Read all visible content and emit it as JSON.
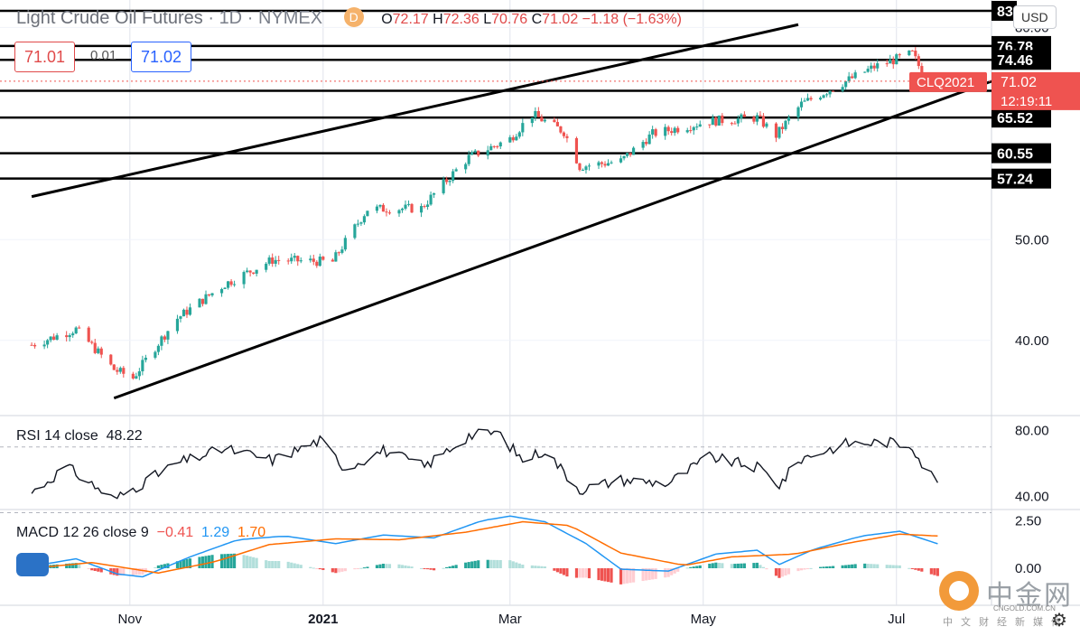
{
  "header": {
    "title": "Light Crude Oil Futures",
    "sep": "·",
    "interval": "1D",
    "exchange": "NYMEX",
    "badge": "D",
    "open_label": "O",
    "open": "72.17",
    "high_label": "H",
    "high": "72.36",
    "low_label": "L",
    "low": "70.76",
    "close_label": "C",
    "close": "71.02",
    "change": "−1.18 (−1.63%)",
    "bid": "71.01",
    "spread": "0.01",
    "ask": "71.02",
    "currency": "USD"
  },
  "colors": {
    "up": "#26a69a",
    "down": "#ef5350",
    "rsi": "#131722",
    "macd": "#2196f3",
    "signal": "#ff6d00",
    "label_red": "#ef5350"
  },
  "chart_data": [
    {
      "type": "candlestick",
      "title": "Light Crude Oil Futures · 1D · NYMEX",
      "x_labels": [
        "Nov",
        "2021",
        "Mar",
        "May",
        "Jul"
      ],
      "y_ticks": [
        40,
        50,
        80
      ],
      "y_tick_labels": [
        "40.00",
        "50.00",
        "80.00"
      ],
      "ylim": [
        34,
        84
      ],
      "scale": "log",
      "last_price_label": {
        "symbol": "CLQ2021",
        "price": "71.02",
        "countdown": "12:19:11"
      },
      "horizontal_levels": [
        {
          "value": 83.0,
          "label": "83"
        },
        {
          "value": 76.78,
          "label": "76.78"
        },
        {
          "value": 74.46,
          "label": "74.46"
        },
        {
          "value": 69.53,
          "label": "69.53"
        },
        {
          "value": 65.52,
          "label": "65.52"
        },
        {
          "value": 60.55,
          "label": "60.55"
        },
        {
          "value": 57.24,
          "label": "57.24"
        }
      ],
      "trend_lines": [
        {
          "from": [
            "2020-10-01",
            55.0
          ],
          "to": [
            "2021-05-31",
            80.5
          ]
        },
        {
          "from": [
            "2020-10-27",
            35.2
          ],
          "to": [
            "2021-07-31",
            71.0
          ]
        }
      ],
      "trend_points": [
        {
          "date": "2020-10-01",
          "close": 39.6
        },
        {
          "date": "2020-10-15",
          "close": 41.0
        },
        {
          "date": "2020-10-27",
          "close": 37.5
        },
        {
          "date": "2020-11-02",
          "close": 36.8
        },
        {
          "date": "2020-11-16",
          "close": 42.0
        },
        {
          "date": "2020-12-01",
          "close": 45.3
        },
        {
          "date": "2020-12-16",
          "close": 47.8
        },
        {
          "date": "2021-01-04",
          "close": 47.6
        },
        {
          "date": "2021-01-15",
          "close": 53.5
        },
        {
          "date": "2021-02-01",
          "close": 53.6
        },
        {
          "date": "2021-02-16",
          "close": 60.0
        },
        {
          "date": "2021-03-01",
          "close": 62.5
        },
        {
          "date": "2021-03-08",
          "close": 66.0
        },
        {
          "date": "2021-03-18",
          "close": 63.5
        },
        {
          "date": "2021-03-23",
          "close": 58.8
        },
        {
          "date": "2021-04-05",
          "close": 59.5
        },
        {
          "date": "2021-04-15",
          "close": 63.2
        },
        {
          "date": "2021-05-03",
          "close": 65.0
        },
        {
          "date": "2021-05-18",
          "close": 65.5
        },
        {
          "date": "2021-05-24",
          "close": 63.0
        },
        {
          "date": "2021-06-01",
          "close": 67.5
        },
        {
          "date": "2021-06-15",
          "close": 71.0
        },
        {
          "date": "2021-06-24",
          "close": 73.3
        },
        {
          "date": "2021-07-06",
          "close": 75.5
        },
        {
          "date": "2021-07-09",
          "close": 72.5
        },
        {
          "date": "2021-07-14",
          "close": 71.02
        }
      ]
    },
    {
      "type": "line",
      "title": "RSI 14 close",
      "value_label": "48.22",
      "ylim": [
        33,
        88
      ],
      "y_ticks": [
        40,
        80
      ],
      "y_tick_labels": [
        "40.00",
        "80.00"
      ],
      "bands": [
        30,
        70
      ],
      "points": [
        {
          "date": "2020-10-01",
          "value": 42
        },
        {
          "date": "2020-10-12",
          "value": 58
        },
        {
          "date": "2020-10-27",
          "value": 38
        },
        {
          "date": "2020-11-16",
          "value": 60
        },
        {
          "date": "2020-12-01",
          "value": 69
        },
        {
          "date": "2020-12-16",
          "value": 62
        },
        {
          "date": "2020-12-31",
          "value": 74
        },
        {
          "date": "2021-01-08",
          "value": 57
        },
        {
          "date": "2021-01-20",
          "value": 68
        },
        {
          "date": "2021-02-02",
          "value": 58
        },
        {
          "date": "2021-02-16",
          "value": 77
        },
        {
          "date": "2021-02-25",
          "value": 79
        },
        {
          "date": "2021-03-05",
          "value": 62
        },
        {
          "date": "2021-03-12",
          "value": 68
        },
        {
          "date": "2021-03-23",
          "value": 44
        },
        {
          "date": "2021-04-05",
          "value": 50
        },
        {
          "date": "2021-04-20",
          "value": 48
        },
        {
          "date": "2021-05-03",
          "value": 64
        },
        {
          "date": "2021-05-19",
          "value": 57
        },
        {
          "date": "2021-05-25",
          "value": 47
        },
        {
          "date": "2021-06-01",
          "value": 63
        },
        {
          "date": "2021-06-15",
          "value": 72
        },
        {
          "date": "2021-06-28",
          "value": 73
        },
        {
          "date": "2021-07-06",
          "value": 71
        },
        {
          "date": "2021-07-09",
          "value": 60
        },
        {
          "date": "2021-07-14",
          "value": 48.22
        }
      ]
    },
    {
      "type": "line",
      "title": "MACD 12 26 close 9",
      "histogram_label": "−0.41",
      "macd_label": "1.29",
      "signal_label": "1.70",
      "ylim": [
        -1.0,
        3.0
      ],
      "y_ticks": [
        0,
        2.5
      ],
      "y_tick_labels": [
        "0.00",
        "2.50"
      ],
      "series": [
        {
          "name": "MACD",
          "points": [
            {
              "date": "2020-10-01",
              "value": 0.1
            },
            {
              "date": "2020-10-15",
              "value": 0.5
            },
            {
              "date": "2020-10-28",
              "value": -0.3
            },
            {
              "date": "2020-11-05",
              "value": -0.45
            },
            {
              "date": "2020-11-20",
              "value": 0.6
            },
            {
              "date": "2020-12-05",
              "value": 1.5
            },
            {
              "date": "2020-12-20",
              "value": 1.7
            },
            {
              "date": "2021-01-05",
              "value": 1.3
            },
            {
              "date": "2021-01-20",
              "value": 1.75
            },
            {
              "date": "2021-02-05",
              "value": 1.6
            },
            {
              "date": "2021-02-20",
              "value": 2.5
            },
            {
              "date": "2021-03-01",
              "value": 2.75
            },
            {
              "date": "2021-03-12",
              "value": 2.45
            },
            {
              "date": "2021-03-25",
              "value": 1.3
            },
            {
              "date": "2021-04-05",
              "value": -0.05
            },
            {
              "date": "2021-04-20",
              "value": -0.15
            },
            {
              "date": "2021-05-05",
              "value": 0.75
            },
            {
              "date": "2021-05-18",
              "value": 0.95
            },
            {
              "date": "2021-05-25",
              "value": 0.2
            },
            {
              "date": "2021-06-05",
              "value": 1.0
            },
            {
              "date": "2021-06-20",
              "value": 1.7
            },
            {
              "date": "2021-07-02",
              "value": 1.95
            },
            {
              "date": "2021-07-14",
              "value": 1.29
            }
          ]
        },
        {
          "name": "Signal",
          "points": [
            {
              "date": "2020-10-01",
              "value": 0.0
            },
            {
              "date": "2020-10-20",
              "value": 0.3
            },
            {
              "date": "2020-11-10",
              "value": -0.25
            },
            {
              "date": "2020-11-28",
              "value": 0.35
            },
            {
              "date": "2020-12-15",
              "value": 1.25
            },
            {
              "date": "2021-01-05",
              "value": 1.55
            },
            {
              "date": "2021-01-25",
              "value": 1.5
            },
            {
              "date": "2021-02-15",
              "value": 1.9
            },
            {
              "date": "2021-03-05",
              "value": 2.45
            },
            {
              "date": "2021-03-20",
              "value": 2.25
            },
            {
              "date": "2021-04-05",
              "value": 0.8
            },
            {
              "date": "2021-04-25",
              "value": 0.15
            },
            {
              "date": "2021-05-10",
              "value": 0.6
            },
            {
              "date": "2021-05-30",
              "value": 0.75
            },
            {
              "date": "2021-06-15",
              "value": 1.3
            },
            {
              "date": "2021-07-02",
              "value": 1.8
            },
            {
              "date": "2021-07-14",
              "value": 1.7
            }
          ]
        }
      ]
    }
  ],
  "watermark": {
    "text": "中金网",
    "url": "CNGOLD.COM.CN",
    "sub": "中文财经新媒体"
  },
  "gear_icon": "gear-icon",
  "tv_logo": "tradingview-logo-icon"
}
